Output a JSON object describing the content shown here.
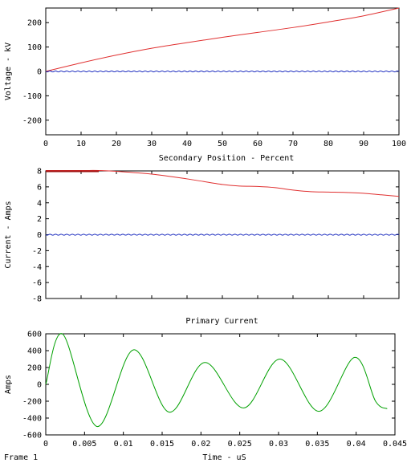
{
  "footer": {
    "frame_label": "Frame 1"
  },
  "colors": {
    "voltage": "#e03030",
    "current": "#e03030",
    "baseline": "#2030c0",
    "primary": "#00a000",
    "axis": "#000000"
  },
  "chart_data": [
    {
      "id": "voltage",
      "type": "line",
      "title": "",
      "xlabel": "Secondary Position - Percent",
      "ylabel": "Voltage - kV",
      "xlim": [
        0,
        100
      ],
      "ylim": [
        -260,
        260
      ],
      "xticks": [
        0,
        10,
        20,
        30,
        40,
        50,
        60,
        70,
        80,
        90,
        100
      ],
      "yticks": [
        -200,
        -100,
        0,
        100,
        200
      ],
      "series": [
        {
          "role": "main",
          "x": [
            0,
            10,
            20,
            30,
            40,
            50,
            60,
            70,
            80,
            90,
            100
          ],
          "values": [
            0,
            35,
            67,
            95,
            118,
            140,
            160,
            180,
            203,
            228,
            260
          ]
        },
        {
          "role": "baseline",
          "x": [
            0,
            100
          ],
          "values": [
            0,
            0
          ]
        }
      ]
    },
    {
      "id": "current",
      "type": "line",
      "title": "",
      "xlabel": "",
      "ylabel": "Current - Amps",
      "xlim": [
        0,
        100
      ],
      "ylim": [
        -8,
        8
      ],
      "xticks": [
        0,
        10,
        20,
        30,
        40,
        50,
        60,
        70,
        80,
        90,
        100
      ],
      "yticks": [
        -8,
        -6,
        -4,
        -2,
        0,
        2,
        4,
        6,
        8
      ],
      "show_xtick_labels": false,
      "series": [
        {
          "role": "main",
          "x": [
            0,
            10,
            15,
            20,
            30,
            40,
            50,
            55,
            60,
            65,
            70,
            75,
            80,
            85,
            90,
            95,
            100
          ],
          "values": [
            8.05,
            8.05,
            8.05,
            7.95,
            7.6,
            7.0,
            6.3,
            6.1,
            6.05,
            5.9,
            5.6,
            5.4,
            5.35,
            5.3,
            5.2,
            5.0,
            4.8
          ]
        },
        {
          "role": "baseline",
          "x": [
            0,
            100
          ],
          "values": [
            0,
            0
          ]
        }
      ]
    },
    {
      "id": "primary",
      "type": "line",
      "title": "Primary Current",
      "xlabel": "Time - uS",
      "ylabel": "Amps",
      "xlim": [
        0,
        0.045
      ],
      "ylim": [
        -600,
        600
      ],
      "xticks": [
        0,
        0.005,
        0.01,
        0.015,
        0.02,
        0.025,
        0.03,
        0.035,
        0.04,
        0.045
      ],
      "xticklabels": [
        "0",
        "0.005",
        "0.01",
        "0.015",
        "0.02",
        "0.025",
        "0.03",
        "0.035",
        "0.04",
        "0.045"
      ],
      "yticks": [
        -600,
        -400,
        -200,
        0,
        200,
        400,
        600
      ],
      "series": [
        {
          "role": "main",
          "x": [
            0,
            0.0022,
            0.0066,
            0.0113,
            0.0159,
            0.0205,
            0.0255,
            0.0302,
            0.0352,
            0.0398,
            0.0425,
            0.044
          ],
          "values": [
            0,
            595,
            -500,
            410,
            -330,
            260,
            -280,
            300,
            -320,
            320,
            -200,
            -290
          ]
        }
      ]
    }
  ]
}
